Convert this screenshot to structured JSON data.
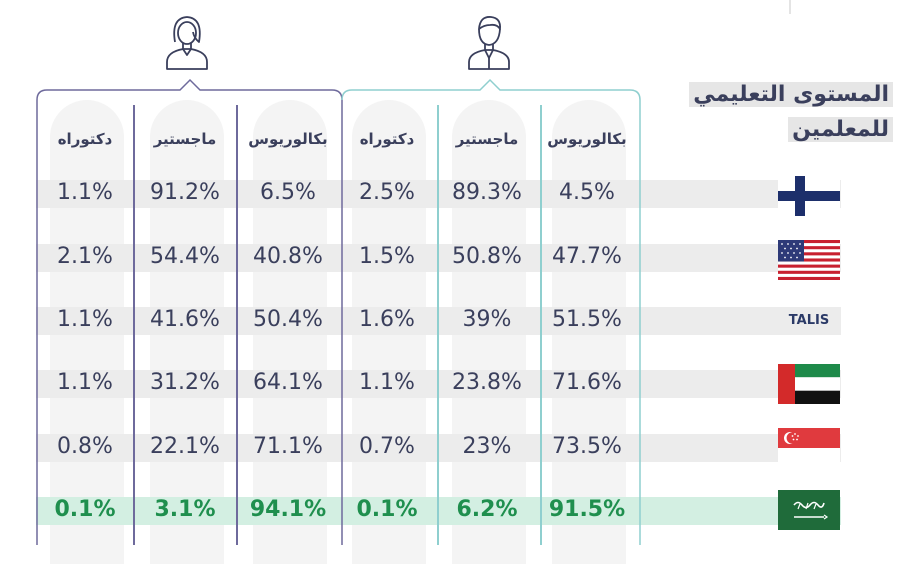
{
  "title": {
    "line1": "المستوى التعليمي",
    "line2": "للمعلمين"
  },
  "groups": [
    {
      "key": "female",
      "icon": "female-user-icon",
      "color": "#6e6a9c"
    },
    {
      "key": "male",
      "icon": "male-user-icon",
      "color": "#8fcfcf"
    }
  ],
  "colors": {
    "highlight_text": "#1f8f4e",
    "highlight_band": "#d3efe2",
    "band": "#ececec",
    "text": "#3a3f5c"
  },
  "chart_data": {
    "type": "table",
    "column_headers": [
      "دكتوراه",
      "ماجستير",
      "بكالوريوس",
      "دكتوراه",
      "ماجستير",
      "بكالوريوس"
    ],
    "groups": [
      "female",
      "female",
      "female",
      "male",
      "male",
      "male"
    ],
    "rows": [
      {
        "country_icon": "finland-flag-icon",
        "label": "",
        "values": [
          "1.1%",
          "91.2%",
          "6.5%",
          "2.5%",
          "89.3%",
          "4.5%"
        ]
      },
      {
        "country_icon": "usa-flag-icon",
        "label": "",
        "values": [
          "2.1%",
          "54.4%",
          "40.8%",
          "1.5%",
          "50.8%",
          "47.7%"
        ]
      },
      {
        "country_icon": "talis-logo",
        "label": "TALIS",
        "values": [
          "1.1%",
          "41.6%",
          "50.4%",
          "1.6%",
          "39%",
          "51.5%"
        ]
      },
      {
        "country_icon": "uae-flag-icon",
        "label": "",
        "values": [
          "1.1%",
          "31.2%",
          "64.1%",
          "1.1%",
          "23.8%",
          "71.6%"
        ]
      },
      {
        "country_icon": "singapore-flag-icon",
        "label": "",
        "values": [
          "0.8%",
          "22.1%",
          "71.1%",
          "0.7%",
          "23%",
          "73.5%"
        ]
      },
      {
        "country_icon": "saudi-flag-icon",
        "label": "",
        "values": [
          "0.1%",
          "3.1%",
          "94.1%",
          "0.1%",
          "6.2%",
          "91.5%"
        ],
        "highlight": true
      }
    ]
  }
}
